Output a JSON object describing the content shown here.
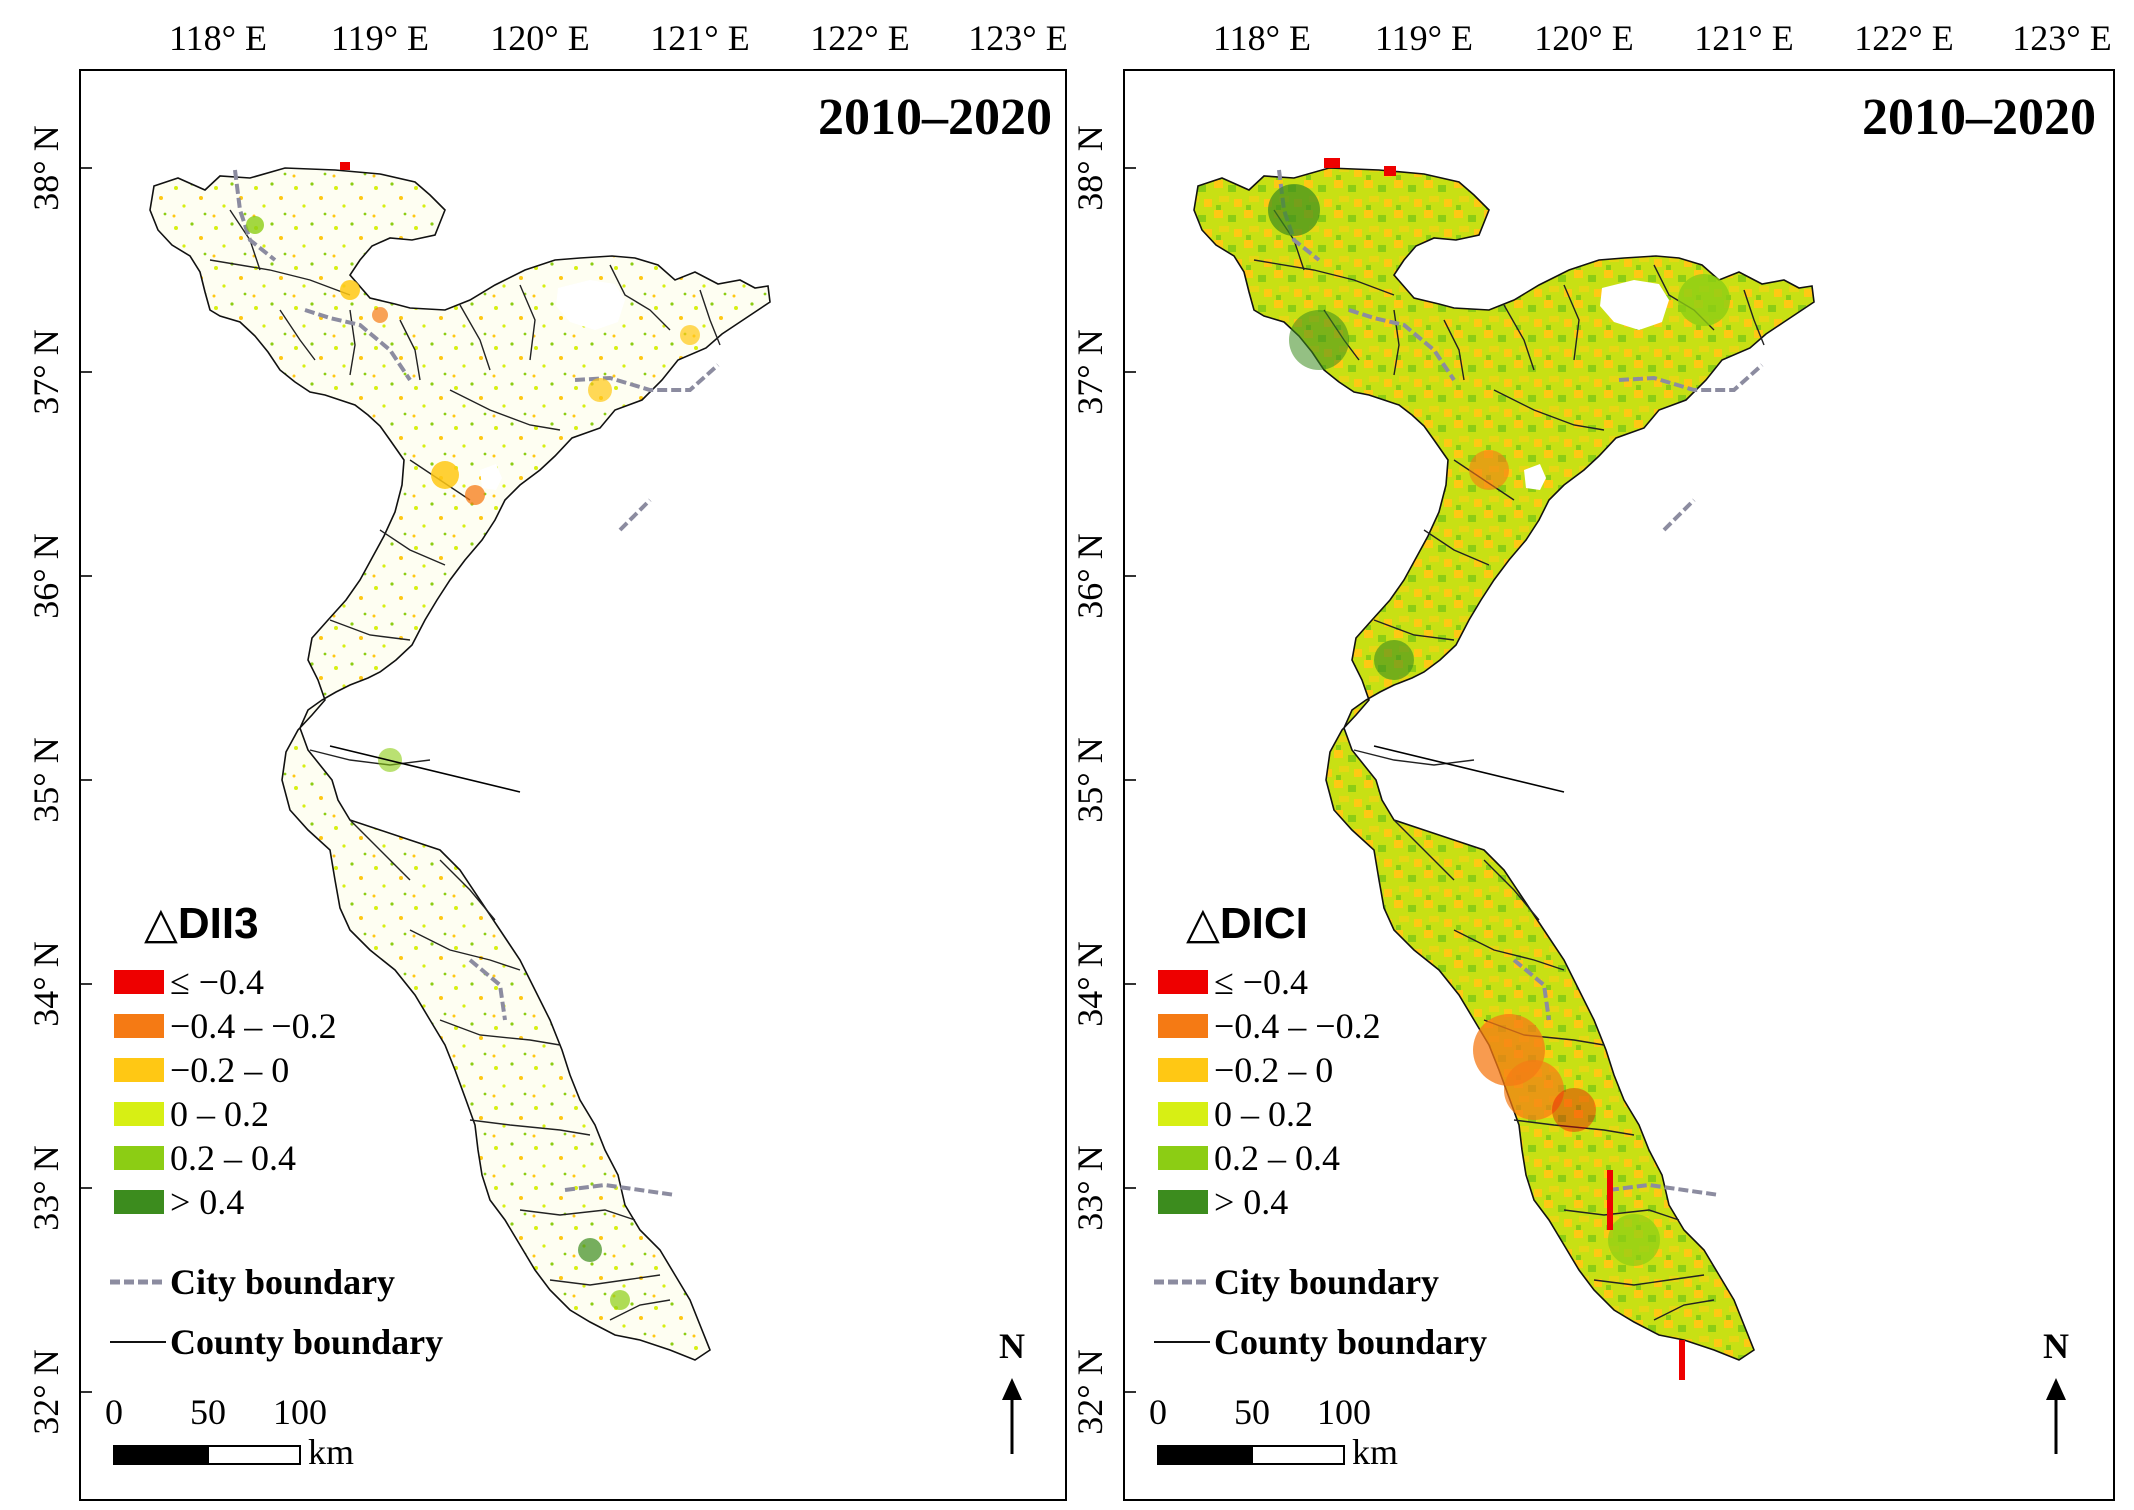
{
  "axes": {
    "longitude_labels": [
      "118° E",
      "119° E",
      "120° E",
      "121° E",
      "122° E",
      "123° E"
    ],
    "latitude_labels": [
      "38° N",
      "37° N",
      "36° N",
      "35° N",
      "34° N",
      "33° N",
      "32° N"
    ]
  },
  "panels": [
    {
      "id": "left",
      "period": "2010–2020",
      "legend_title_symbol": "△",
      "legend_title": "DII3",
      "style": "sparse"
    },
    {
      "id": "right",
      "period": "2010–2020",
      "legend_title_symbol": "△",
      "legend_title": "DICI",
      "style": "dense"
    }
  ],
  "legend_classes": [
    {
      "label": "≤ −0.4",
      "color": "#ee0000"
    },
    {
      "label": "−0.4 – −0.2",
      "color": "#f57a14"
    },
    {
      "label": "−0.2 – 0",
      "color": "#ffc814"
    },
    {
      "label": "0 – 0.2",
      "color": "#d7ef14"
    },
    {
      "label": "0.2 – 0.4",
      "color": "#8ccd14"
    },
    {
      "label": "> 0.4",
      "color": "#3c8c1e"
    }
  ],
  "boundaries": {
    "city": "City boundary",
    "county": "County boundary"
  },
  "scalebar": {
    "ticks": [
      "0",
      "50",
      "100"
    ],
    "unit": "km"
  },
  "north_arrow": {
    "label": "N"
  }
}
